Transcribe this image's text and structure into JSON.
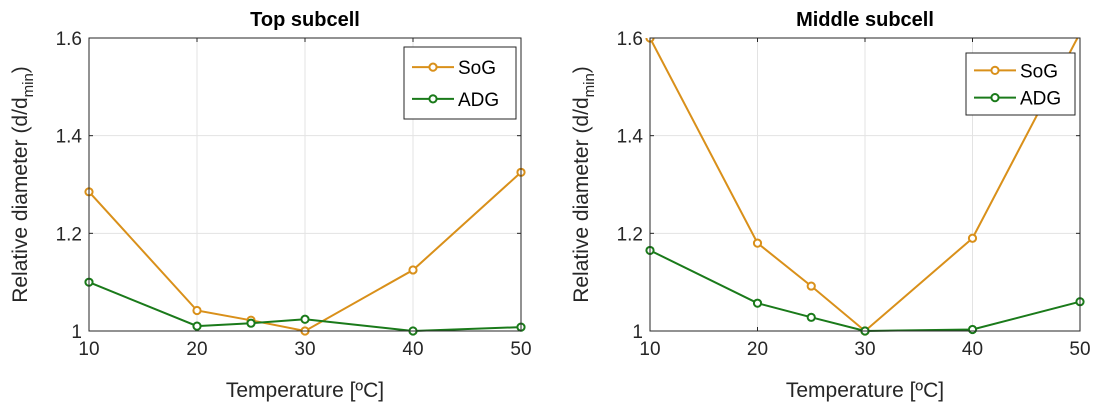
{
  "chart_data": [
    {
      "type": "line",
      "title": "Top subcell",
      "xlabel": "Temperature [ºC]",
      "ylabel_main": "Relative diameter (d/d",
      "ylabel_sub": "min",
      "ylabel_close": ")",
      "xlim": [
        10,
        50
      ],
      "ylim": [
        1,
        1.6
      ],
      "xticks": [
        10,
        20,
        30,
        40,
        50
      ],
      "yticks": [
        1,
        1.2,
        1.4,
        1.6
      ],
      "grid": true,
      "legend_position": "top-right",
      "series": [
        {
          "name": "SoG",
          "color": "#D9901A",
          "x": [
            10,
            20,
            25,
            30,
            40,
            50
          ],
          "y": [
            1.285,
            1.042,
            1.022,
            1.0,
            1.125,
            1.325
          ]
        },
        {
          "name": "ADG",
          "color": "#1A7A1A",
          "x": [
            10,
            20,
            25,
            30,
            40,
            50
          ],
          "y": [
            1.1,
            1.01,
            1.016,
            1.024,
            1.0,
            1.008
          ]
        }
      ]
    },
    {
      "type": "line",
      "title": "Middle subcell",
      "xlabel": "Temperature [ºC]",
      "ylabel_main": "Relative diameter (d/d",
      "ylabel_sub": "min",
      "ylabel_close": ")",
      "xlim": [
        10,
        50
      ],
      "ylim": [
        1,
        1.6
      ],
      "xticks": [
        10,
        20,
        30,
        40,
        50
      ],
      "yticks": [
        1,
        1.2,
        1.4,
        1.6
      ],
      "grid": true,
      "legend_position": "top-right",
      "series": [
        {
          "name": "SoG",
          "color": "#D9901A",
          "x": [
            10,
            20,
            25,
            30,
            40,
            50
          ],
          "y": [
            1.6,
            1.18,
            1.092,
            1.0,
            1.19,
            1.61
          ]
        },
        {
          "name": "ADG",
          "color": "#1A7A1A",
          "x": [
            10,
            20,
            25,
            30,
            40,
            50
          ],
          "y": [
            1.165,
            1.057,
            1.028,
            1.0,
            1.003,
            1.06
          ]
        }
      ]
    }
  ]
}
